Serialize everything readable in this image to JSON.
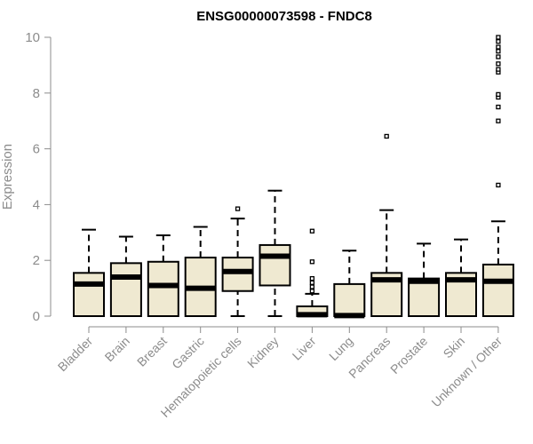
{
  "chart_data": {
    "type": "box",
    "title": "ENSG00000073598 - FNDC8",
    "ylabel": "Expression",
    "xlabel": "",
    "ylim": [
      0,
      10
    ],
    "yticks": [
      0,
      2,
      4,
      6,
      8,
      10
    ],
    "grid": false,
    "legend": "none",
    "box_fill": "#efe9d1",
    "categories": [
      "Bladder",
      "Brain",
      "Breast",
      "Gastric",
      "Hematopoietic cells",
      "Kidney",
      "Liver",
      "Lung",
      "Pancreas",
      "Prostate",
      "Skin",
      "Unknown / Other"
    ],
    "boxes": [
      {
        "min": 0,
        "q1": 0,
        "median": 1.15,
        "q3": 1.55,
        "max": 3.1,
        "outliers": []
      },
      {
        "min": 0,
        "q1": 0,
        "median": 1.4,
        "q3": 1.9,
        "max": 2.85,
        "outliers": []
      },
      {
        "min": 0,
        "q1": 0,
        "median": 1.1,
        "q3": 1.95,
        "max": 2.9,
        "outliers": []
      },
      {
        "min": 0,
        "q1": 0,
        "median": 1.0,
        "q3": 2.1,
        "max": 3.2,
        "outliers": []
      },
      {
        "min": 0,
        "q1": 0.9,
        "median": 1.6,
        "q3": 2.1,
        "max": 3.5,
        "outliers": [
          3.85
        ]
      },
      {
        "min": 0,
        "q1": 1.1,
        "median": 2.15,
        "q3": 2.55,
        "max": 4.5,
        "outliers": []
      },
      {
        "min": 0,
        "q1": 0,
        "median": 0.05,
        "q3": 0.35,
        "max": 0.8,
        "outliers": [
          0.9,
          1.05,
          1.2,
          1.35,
          1.95,
          3.05
        ]
      },
      {
        "min": 0,
        "q1": 0,
        "median": 0.02,
        "q3": 1.15,
        "max": 2.35,
        "outliers": []
      },
      {
        "min": 0,
        "q1": 0,
        "median": 1.3,
        "q3": 1.55,
        "max": 3.8,
        "outliers": [
          6.45
        ]
      },
      {
        "min": 0,
        "q1": 0,
        "median": 1.25,
        "q3": 1.35,
        "max": 2.6,
        "outliers": []
      },
      {
        "min": 0,
        "q1": 0,
        "median": 1.3,
        "q3": 1.55,
        "max": 2.75,
        "outliers": []
      },
      {
        "min": 0,
        "q1": 0,
        "median": 1.25,
        "q3": 1.85,
        "max": 3.4,
        "outliers": [
          4.7,
          7.0,
          7.5,
          7.85,
          7.95,
          8.75,
          8.85,
          9.05,
          9.3,
          9.5,
          9.65,
          9.85,
          10.0
        ]
      }
    ]
  }
}
